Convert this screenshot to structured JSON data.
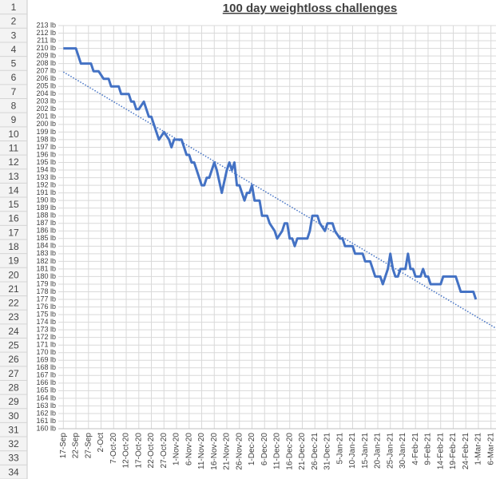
{
  "sheet": {
    "row_numbers": [
      "1",
      "2",
      "3",
      "4",
      "5",
      "6",
      "7",
      "8",
      "9",
      "10",
      "11",
      "12",
      "13",
      "14",
      "15",
      "16",
      "17",
      "18",
      "19",
      "20",
      "21",
      "22",
      "23",
      "24",
      "25",
      "26",
      "27",
      "28",
      "29",
      "30",
      "31",
      "32",
      "33",
      "34"
    ]
  },
  "chart_data": {
    "type": "line",
    "title": "100 day weightloss challenges",
    "xlim": [
      -2,
      172
    ],
    "xticks": [
      {
        "value": 0,
        "label": "17-Sep"
      },
      {
        "value": 5,
        "label": "22-Sep"
      },
      {
        "value": 10,
        "label": "27-Sep"
      },
      {
        "value": 15,
        "label": "2-Oct"
      },
      {
        "value": 20,
        "label": "7-Oct-20"
      },
      {
        "value": 25,
        "label": "12-Oct-20"
      },
      {
        "value": 30,
        "label": "17-Oct-20"
      },
      {
        "value": 35,
        "label": "22-Oct-20"
      },
      {
        "value": 40,
        "label": "27-Oct-20"
      },
      {
        "value": 45,
        "label": "1-Nov-20"
      },
      {
        "value": 50,
        "label": "6-Nov-20"
      },
      {
        "value": 55,
        "label": "11-Nov-20"
      },
      {
        "value": 60,
        "label": "16-Nov-20"
      },
      {
        "value": 65,
        "label": "21-Nov-20"
      },
      {
        "value": 70,
        "label": "26-Nov-20"
      },
      {
        "value": 75,
        "label": "1-Dec-20"
      },
      {
        "value": 80,
        "label": "6-Dec-20"
      },
      {
        "value": 85,
        "label": "11-Dec-20"
      },
      {
        "value": 90,
        "label": "16-Dec-20"
      },
      {
        "value": 95,
        "label": "21-Dec-20"
      },
      {
        "value": 100,
        "label": "26-Dec-21"
      },
      {
        "value": 105,
        "label": "31-Dec-21"
      },
      {
        "value": 110,
        "label": "5-Jan-21"
      },
      {
        "value": 115,
        "label": "10-Jan-21"
      },
      {
        "value": 120,
        "label": "15-Jan-21"
      },
      {
        "value": 125,
        "label": "20-Jan-21"
      },
      {
        "value": 130,
        "label": "25-Jan-21"
      },
      {
        "value": 135,
        "label": "30-Jan-21"
      },
      {
        "value": 140,
        "label": "4-Feb-21"
      },
      {
        "value": 145,
        "label": "9-Feb-21"
      },
      {
        "value": 150,
        "label": "14-Feb-21"
      },
      {
        "value": 155,
        "label": "19-Feb-21"
      },
      {
        "value": 160,
        "label": "24-Feb-21"
      },
      {
        "value": 165,
        "label": "1-Mar-21"
      },
      {
        "value": 170,
        "label": "6-Mar-21"
      }
    ],
    "ylim": [
      160,
      213
    ],
    "yticks": [
      {
        "value": 160,
        "label": "160 lb"
      },
      {
        "value": 161,
        "label": "161 lb"
      },
      {
        "value": 162,
        "label": "162 lb"
      },
      {
        "value": 163,
        "label": "163 lb"
      },
      {
        "value": 164,
        "label": "164 lb"
      },
      {
        "value": 165,
        "label": "165 lb"
      },
      {
        "value": 166,
        "label": "166 lb"
      },
      {
        "value": 167,
        "label": "167 lb"
      },
      {
        "value": 168,
        "label": "168 lb"
      },
      {
        "value": 169,
        "label": "169 lb"
      },
      {
        "value": 170,
        "label": "170 lb"
      },
      {
        "value": 171,
        "label": "171 lb"
      },
      {
        "value": 172,
        "label": "172 lb"
      },
      {
        "value": 173,
        "label": "173 lb"
      },
      {
        "value": 174,
        "label": "174 lb"
      },
      {
        "value": 175,
        "label": "175 lb"
      },
      {
        "value": 176,
        "label": "176 lb"
      },
      {
        "value": 177,
        "label": "177 lb"
      },
      {
        "value": 178,
        "label": "178 lb"
      },
      {
        "value": 179,
        "label": "179 lb"
      },
      {
        "value": 180,
        "label": "180 lb"
      },
      {
        "value": 181,
        "label": "181 lb"
      },
      {
        "value": 182,
        "label": "182 lb"
      },
      {
        "value": 183,
        "label": "183 lb"
      },
      {
        "value": 184,
        "label": "184 lb"
      },
      {
        "value": 185,
        "label": "185 lb"
      },
      {
        "value": 186,
        "label": "186 lb"
      },
      {
        "value": 187,
        "label": "187 lb"
      },
      {
        "value": 188,
        "label": "188 lb"
      },
      {
        "value": 189,
        "label": "189 lb"
      },
      {
        "value": 190,
        "label": "190 lb"
      },
      {
        "value": 191,
        "label": "191 lb"
      },
      {
        "value": 192,
        "label": "192 lb"
      },
      {
        "value": 193,
        "label": "193 lb"
      },
      {
        "value": 194,
        "label": "194 lb"
      },
      {
        "value": 195,
        "label": "195 lb"
      },
      {
        "value": 196,
        "label": "196 lb"
      },
      {
        "value": 197,
        "label": "197 lb"
      },
      {
        "value": 198,
        "label": "198 lb"
      },
      {
        "value": 199,
        "label": "199 lb"
      },
      {
        "value": 200,
        "label": "200 lb"
      },
      {
        "value": 201,
        "label": "201 lb"
      },
      {
        "value": 202,
        "label": "202 lb"
      },
      {
        "value": 203,
        "label": "203 lb"
      },
      {
        "value": 204,
        "label": "204 lb"
      },
      {
        "value": 205,
        "label": "205 lb"
      },
      {
        "value": 206,
        "label": "206 lb"
      },
      {
        "value": 207,
        "label": "207 lb"
      },
      {
        "value": 208,
        "label": "208 lb"
      },
      {
        "value": 209,
        "label": "209 lb"
      },
      {
        "value": 210,
        "label": "210 lb"
      },
      {
        "value": 211,
        "label": "211 lb"
      },
      {
        "value": 212,
        "label": "212 lb"
      },
      {
        "value": 213,
        "label": "213 lb"
      }
    ],
    "grid": true,
    "series": [
      {
        "color": "#4472c4",
        "x": [
          0,
          5,
          7,
          11,
          12,
          14,
          16,
          18,
          19,
          22,
          23,
          26,
          27,
          28,
          29,
          30,
          32,
          34,
          35,
          37,
          38,
          40,
          42,
          43,
          44,
          47,
          49,
          50,
          51,
          52,
          54,
          55,
          56,
          57,
          58,
          60,
          61,
          63,
          65,
          66,
          67,
          68,
          69,
          70,
          72,
          73,
          74,
          75,
          76,
          78,
          79,
          81,
          82,
          84,
          85,
          87,
          88,
          89,
          90,
          91,
          92,
          93,
          97,
          98,
          99,
          101,
          102,
          104,
          105,
          107,
          108,
          110,
          111,
          112,
          115,
          116,
          119,
          120,
          122,
          124,
          126,
          127,
          129,
          130,
          131,
          132,
          133,
          134,
          136,
          137,
          138,
          139,
          140,
          142,
          143,
          144,
          145,
          146,
          150,
          151,
          156,
          158,
          163,
          164
        ],
        "values": [
          210,
          210,
          208,
          208,
          207,
          207,
          206,
          206,
          205,
          205,
          204,
          204,
          203,
          203,
          202,
          202,
          203,
          201,
          201,
          199,
          198,
          199,
          198,
          197,
          198,
          198,
          196,
          196,
          195,
          195,
          193,
          192,
          192,
          193,
          193,
          195,
          194,
          191,
          194,
          195,
          194,
          195,
          192,
          192,
          190,
          191,
          191,
          192,
          190,
          190,
          188,
          188,
          187,
          186,
          185,
          186,
          187,
          187,
          185,
          185,
          184,
          185,
          185,
          186,
          188,
          188,
          187,
          186,
          187,
          187,
          186,
          185,
          185,
          184,
          184,
          183,
          183,
          182,
          182,
          180,
          180,
          179,
          181,
          183,
          181,
          180,
          180,
          181,
          181,
          183,
          181,
          181,
          180,
          180,
          181,
          180,
          180,
          179,
          179,
          180,
          180,
          178,
          178,
          177
        ]
      }
    ],
    "trendline": {
      "color": "#4472c4",
      "x": [
        0,
        172
      ],
      "values": [
        206.9,
        173.2
      ]
    }
  }
}
